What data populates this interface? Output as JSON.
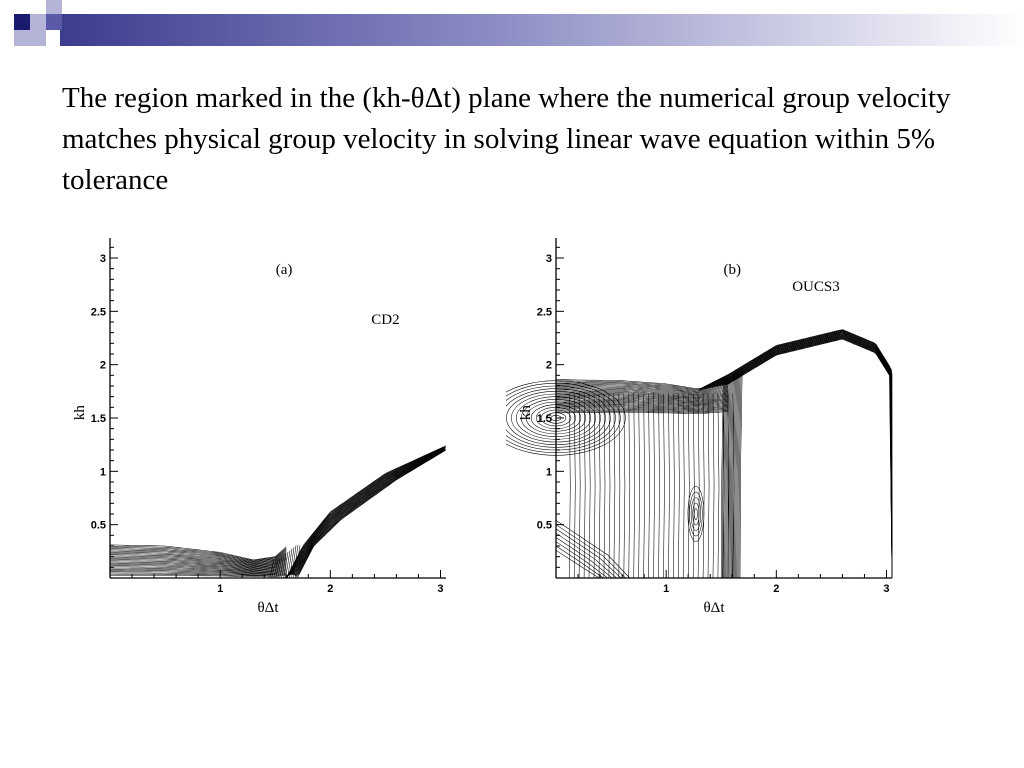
{
  "slide": {
    "title": "The region marked in the (kh-θΔt) plane where the numerical group velocity matches physical group velocity in solving linear wave equation within 5% tolerance"
  },
  "colors": {
    "banner_navy": "#1a1a6e",
    "banner_blue": "#5a5aa8",
    "banner_light": "#b4b4d8",
    "contour": "#000000"
  },
  "chart_data": [
    {
      "type": "contour",
      "panel_label": "(a)",
      "scheme_label": "CD2",
      "xlabel": "θΔt",
      "ylabel": "kh",
      "xlim": [
        0,
        3.05
      ],
      "ylim": [
        0,
        3.15
      ],
      "xticks": [
        "1",
        "2",
        "3"
      ],
      "yticks": [
        "0.5",
        "1",
        "1.5",
        "2",
        "2.5",
        "3"
      ],
      "region_boundary": {
        "low_band_top": [
          [
            0,
            0.31
          ],
          [
            0.5,
            0.3
          ],
          [
            1.0,
            0.24
          ],
          [
            1.3,
            0.17
          ],
          [
            1.5,
            0.2
          ],
          [
            1.65,
            0.34
          ]
        ],
        "upper_branch": [
          [
            1.6,
            0.0
          ],
          [
            1.75,
            0.3
          ],
          [
            2.0,
            0.62
          ],
          [
            2.5,
            0.98
          ],
          [
            3.05,
            1.24
          ]
        ],
        "inner_branch": [
          [
            1.7,
            0.0
          ],
          [
            1.85,
            0.3
          ],
          [
            2.1,
            0.55
          ],
          [
            2.6,
            0.92
          ],
          [
            3.05,
            1.2
          ]
        ]
      }
    },
    {
      "type": "contour",
      "panel_label": "(b)",
      "scheme_label": "OUCS3",
      "xlabel": "θΔt",
      "ylabel": "kh",
      "xlim": [
        0,
        3.05
      ],
      "ylim": [
        0,
        3.15
      ],
      "xticks": [
        "1",
        "2",
        "3"
      ],
      "yticks": [
        "0.5",
        "1",
        "1.5",
        "2",
        "2.5",
        "3"
      ],
      "region_boundary": {
        "outer_top": [
          [
            0,
            1.86
          ],
          [
            0.6,
            1.85
          ],
          [
            1.0,
            1.82
          ],
          [
            1.3,
            1.77
          ],
          [
            1.55,
            1.9
          ],
          [
            2.0,
            2.18
          ],
          [
            2.6,
            2.33
          ],
          [
            2.9,
            2.2
          ],
          [
            3.05,
            1.95
          ]
        ],
        "right_edge": [
          [
            3.05,
            1.95
          ],
          [
            3.05,
            0.0
          ]
        ],
        "inner_vertical": [
          [
            1.6,
            1.75
          ],
          [
            1.62,
            1.0
          ],
          [
            1.65,
            0.0
          ]
        ]
      }
    }
  ]
}
